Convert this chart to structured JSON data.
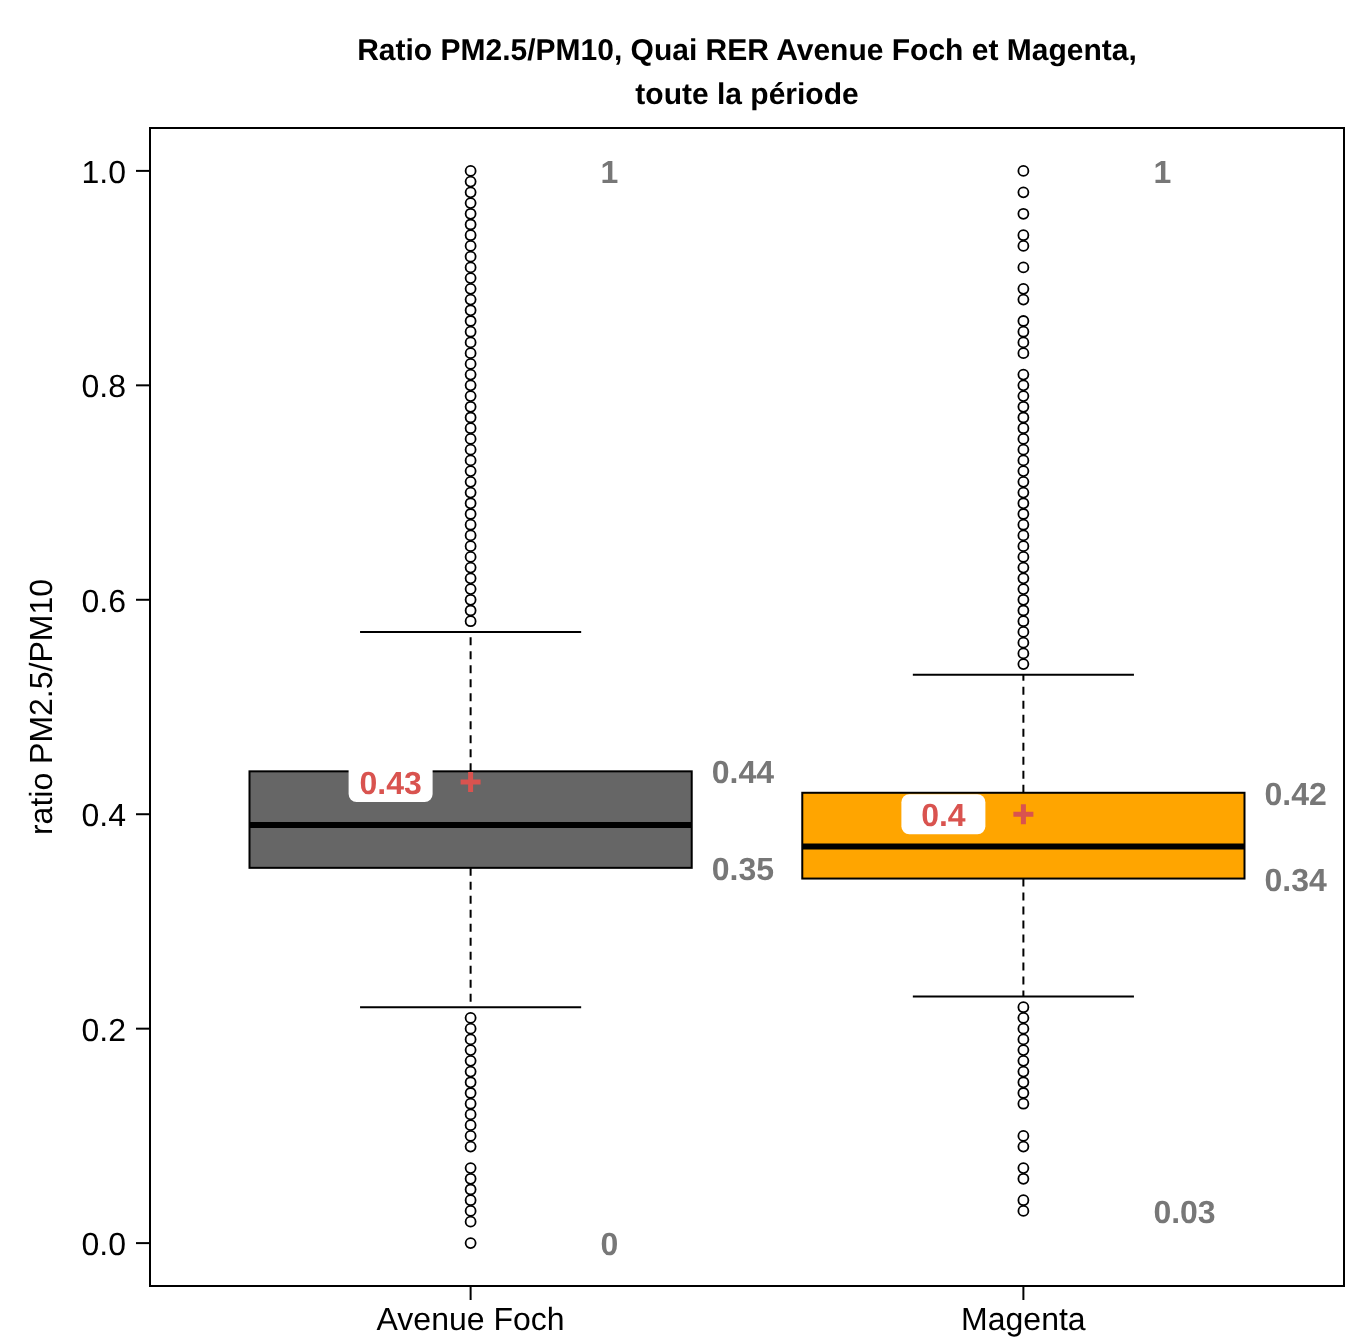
{
  "chart_data": {
    "type": "box",
    "title": "Ratio PM2.5/PM10, Quai RER Avenue Foch et Magenta,\ntoute la période",
    "ylabel": "ratio PM2.5/PM10",
    "categories": [
      "Avenue Foch",
      "Magenta"
    ],
    "colors": [
      "#666666",
      "#ffa500"
    ],
    "boxes": [
      {
        "low": 0.22,
        "q1": 0.35,
        "median": 0.39,
        "q3": 0.44,
        "high": 0.57,
        "mean": 0.43,
        "outliers": [
          0.58,
          0.59,
          0.6,
          0.61,
          0.62,
          0.63,
          0.64,
          0.65,
          0.66,
          0.67,
          0.68,
          0.69,
          0.7,
          0.71,
          0.72,
          0.73,
          0.74,
          0.75,
          0.76,
          0.77,
          0.78,
          0.79,
          0.8,
          0.81,
          0.82,
          0.83,
          0.84,
          0.85,
          0.86,
          0.87,
          0.88,
          0.89,
          0.9,
          0.91,
          0.92,
          0.93,
          0.94,
          0.95,
          0.96,
          0.97,
          0.98,
          0.99,
          1.0,
          0.21,
          0.2,
          0.19,
          0.18,
          0.17,
          0.16,
          0.15,
          0.14,
          0.13,
          0.12,
          0.11,
          0.1,
          0.09,
          0.07,
          0.06,
          0.05,
          0.04,
          0.03,
          0.02,
          0.0
        ]
      },
      {
        "low": 0.23,
        "q1": 0.34,
        "median": 0.37,
        "q3": 0.42,
        "high": 0.53,
        "mean": 0.4,
        "outliers": [
          1.0,
          0.98,
          0.96,
          0.94,
          0.93,
          0.91,
          0.89,
          0.88,
          0.86,
          0.85,
          0.84,
          0.83,
          0.81,
          0.8,
          0.79,
          0.78,
          0.77,
          0.76,
          0.75,
          0.74,
          0.73,
          0.72,
          0.71,
          0.7,
          0.69,
          0.68,
          0.67,
          0.66,
          0.65,
          0.64,
          0.63,
          0.62,
          0.61,
          0.6,
          0.59,
          0.58,
          0.57,
          0.56,
          0.55,
          0.54,
          0.22,
          0.21,
          0.2,
          0.19,
          0.18,
          0.17,
          0.16,
          0.15,
          0.14,
          0.13,
          0.1,
          0.09,
          0.07,
          0.06,
          0.04,
          0.03
        ]
      }
    ],
    "ylim": [
      -0.04,
      1.04
    ],
    "yticks": [
      {
        "value": 0,
        "label": "0.0"
      },
      0.2,
      0.4,
      0.6,
      0.8,
      {
        "value": 1,
        "label": "1.0"
      }
    ],
    "grid": false,
    "annotations": [
      "1",
      "0.44",
      "0.43",
      "0.35",
      "0",
      "1",
      "0.42",
      "0.4",
      "0.34",
      "0.03"
    ]
  }
}
